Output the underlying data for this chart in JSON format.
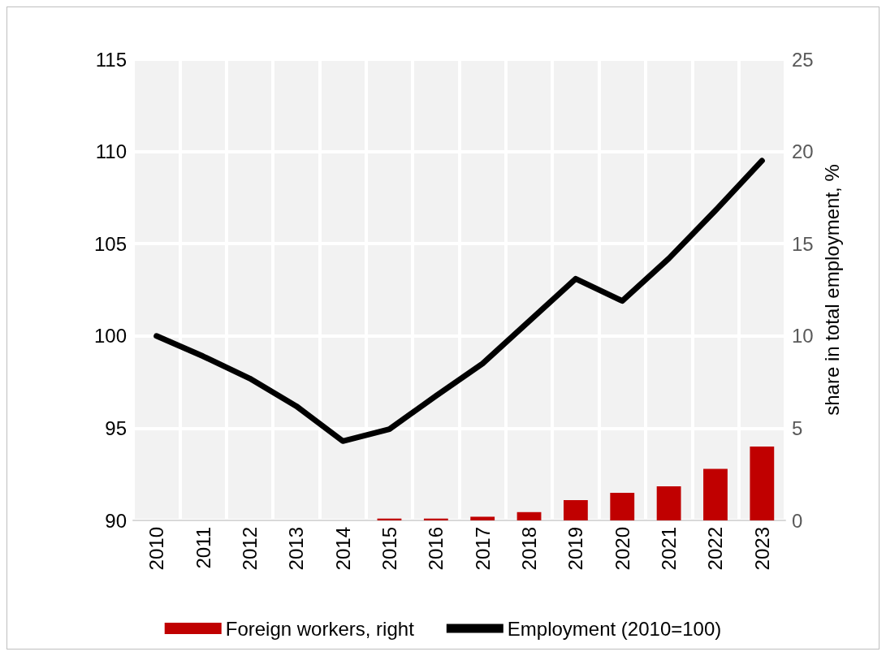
{
  "chart_data": {
    "type": "line",
    "categories": [
      "2010",
      "2011",
      "2012",
      "2013",
      "2014",
      "2015",
      "2016",
      "2017",
      "2018",
      "2019",
      "2020",
      "2021",
      "2022",
      "2023"
    ],
    "series": [
      {
        "name": "Foreign workers, right",
        "type": "bar",
        "axis": "y2",
        "color": "#c00000",
        "values": [
          null,
          null,
          null,
          null,
          null,
          0.1,
          0.1,
          0.2,
          0.45,
          1.1,
          1.5,
          1.85,
          2.8,
          4.0
        ]
      },
      {
        "name": "Employment (2010=100)",
        "color": "#000000",
        "values": [
          100,
          98.9,
          97.7,
          96.2,
          94.3,
          94.95,
          96.75,
          98.5,
          100.8,
          103.1,
          101.9,
          104.2,
          106.8,
          109.5
        ]
      }
    ],
    "ylim": [
      90,
      115
    ],
    "yticks": [
      90,
      95,
      100,
      105,
      110,
      115
    ],
    "y2lim": [
      0,
      25
    ],
    "y2ticks": [
      0,
      5,
      10,
      15,
      20,
      25
    ],
    "y2label": "share in total employment, %",
    "grid": true,
    "legend": "bottom",
    "marker": "none",
    "line_style": "solid"
  }
}
